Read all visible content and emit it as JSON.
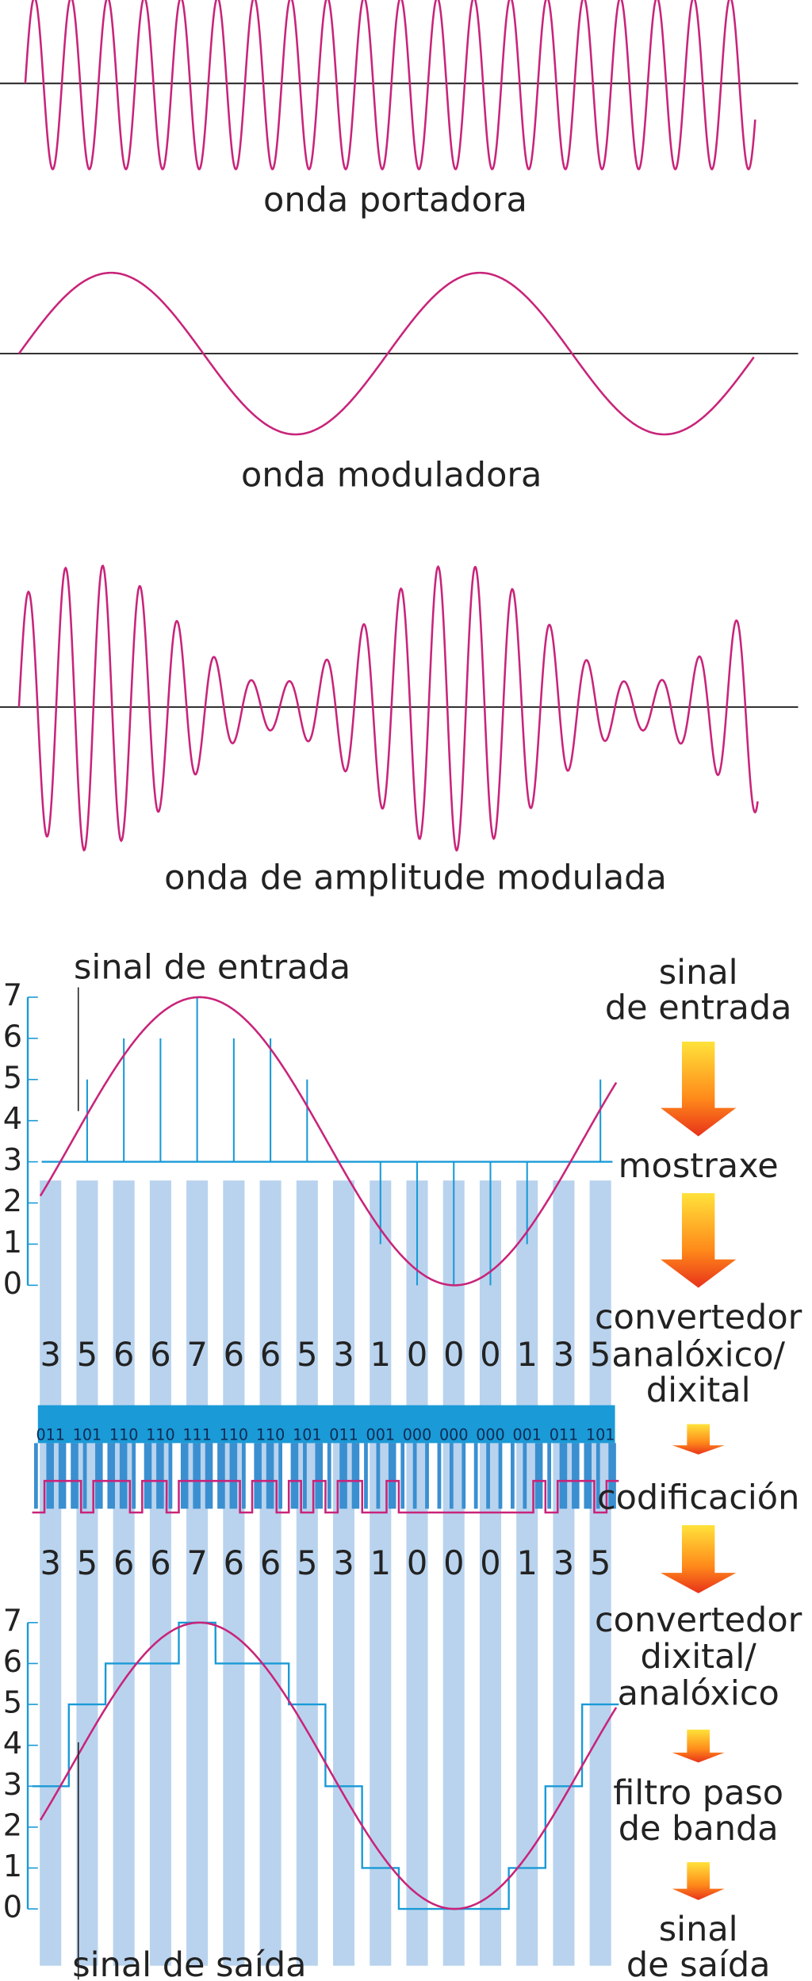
{
  "waves": [
    {
      "label": "onda portadora"
    },
    {
      "label": "onda moduladora"
    },
    {
      "label": "onda de amplitude modulada"
    }
  ],
  "sampling": {
    "input_label": "sinal de entrada",
    "output_label": "sinal de saída",
    "yticks": [
      0,
      1,
      2,
      3,
      4,
      5,
      6,
      7
    ],
    "adc_values": [
      3,
      5,
      6,
      6,
      7,
      6,
      6,
      5,
      3,
      1,
      0,
      0,
      0,
      1,
      3,
      5
    ],
    "codes": [
      "011",
      "101",
      "110",
      "110",
      "111",
      "110",
      "110",
      "101",
      "011",
      "001",
      "000",
      "000",
      "000",
      "001",
      "011",
      "101"
    ],
    "dac_values": [
      3,
      5,
      6,
      6,
      7,
      6,
      6,
      5,
      3,
      1,
      0,
      0,
      0,
      1,
      3,
      5
    ]
  },
  "steps": [
    [
      "sinal",
      "de entrada"
    ],
    [
      "mostraxe"
    ],
    [
      "convertedor",
      "analóxico/",
      "dixital"
    ],
    [
      "codificación"
    ],
    [
      "convertedor",
      "dixital/",
      "analóxico"
    ],
    [
      "filtro paso",
      "de banda"
    ],
    [
      "sinal",
      "de saída"
    ]
  ]
}
